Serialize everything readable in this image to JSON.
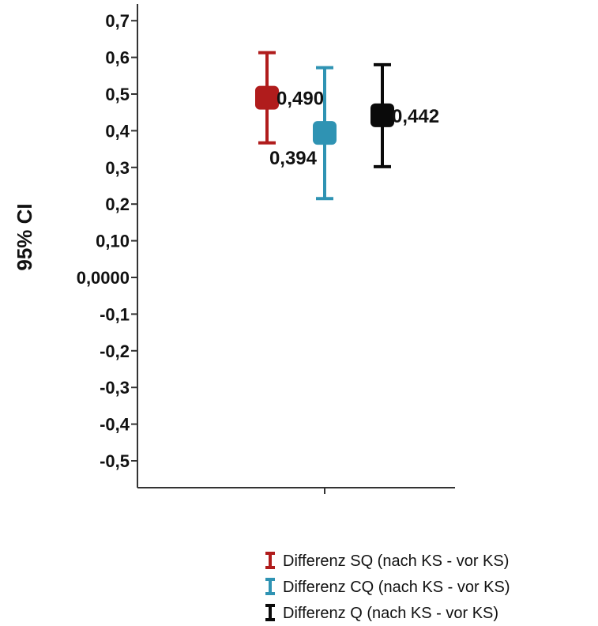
{
  "chart_data": {
    "type": "errorbar",
    "ylabel": "95% CI",
    "xlabel": "",
    "ylim": [
      -0.6,
      0.75
    ],
    "y_ticks": [
      {
        "value": 0.7,
        "label": "0,7"
      },
      {
        "value": 0.6,
        "label": "0,6"
      },
      {
        "value": 0.5,
        "label": "0,5"
      },
      {
        "value": 0.4,
        "label": "0,4"
      },
      {
        "value": 0.3,
        "label": "0,3"
      },
      {
        "value": 0.2,
        "label": "0,2"
      },
      {
        "value": 0.1,
        "label": "0,10"
      },
      {
        "value": 0.0,
        "label": "0,0000"
      },
      {
        "value": -0.1,
        "label": "-0,1"
      },
      {
        "value": -0.2,
        "label": "-0,2"
      },
      {
        "value": -0.3,
        "label": "-0,3"
      },
      {
        "value": -0.4,
        "label": "-0,4"
      },
      {
        "value": -0.5,
        "label": "-0,5"
      }
    ],
    "grid": false,
    "legend_position": "bottom-right",
    "series": [
      {
        "name": "Differenz SQ (nach KS - vor KS)",
        "mean": 0.49,
        "lower": 0.367,
        "upper": 0.613,
        "label": "0,490",
        "label_position": "right",
        "color": "#b01c1c"
      },
      {
        "name": "Differenz CQ (nach KS - vor KS)",
        "mean": 0.394,
        "lower": 0.215,
        "upper": 0.572,
        "label": "0,394",
        "label_position": "below-left",
        "color": "#2f93b3"
      },
      {
        "name": "Differenz Q (nach KS - vor KS)",
        "mean": 0.442,
        "lower": 0.302,
        "upper": 0.58,
        "label": "0,442",
        "label_position": "right",
        "color": "#0a0a0a"
      }
    ]
  }
}
